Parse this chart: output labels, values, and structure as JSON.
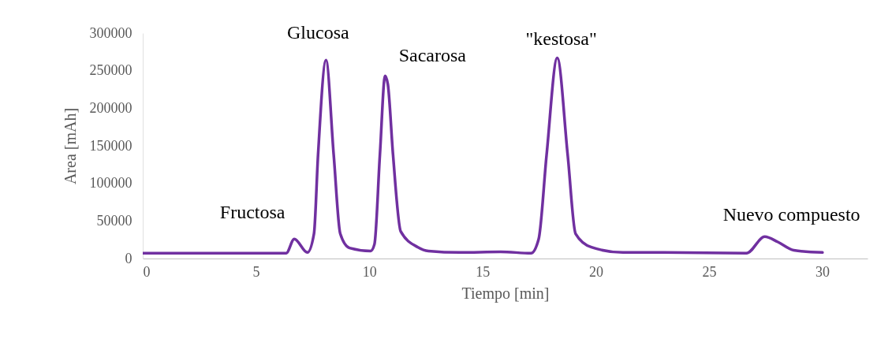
{
  "chart_data": {
    "type": "line",
    "xlabel": "Tiempo [min]",
    "ylabel": "Area [mAh]",
    "xlim": [
      0,
      32
    ],
    "xticks": [
      0,
      5,
      10,
      15,
      20,
      25,
      30
    ],
    "ylim": [
      0,
      300000
    ],
    "yticks": [
      0,
      50000,
      100000,
      150000,
      200000,
      250000,
      300000
    ],
    "grid": false,
    "marker": "none",
    "line_style": "solid",
    "series": [
      {
        "color": "#7030a0",
        "x": [
          0,
          3,
          6.33,
          6.69,
          7.27,
          7.56,
          7.74,
          8.09,
          8.43,
          8.72,
          9.13,
          10.06,
          10.23,
          10.47,
          10.7,
          10.82,
          11.05,
          11.39,
          12.15,
          12.61,
          14,
          15.8,
          17.14,
          17.48,
          17.83,
          18.3,
          18.76,
          19.11,
          19.81,
          21.2,
          23,
          26.65,
          27.46,
          28.04,
          28.74,
          30.01
        ],
        "values": [
          7000,
          7000,
          7000,
          26000,
          8000,
          33000,
          138000,
          264000,
          138000,
          33000,
          14000,
          10000,
          19000,
          138000,
          243000,
          232000,
          138000,
          36000,
          15000,
          10000,
          8000,
          9000,
          7000,
          26000,
          138000,
          267000,
          138000,
          33000,
          15000,
          8000,
          8000,
          7000,
          29000,
          22000,
          11000,
          8000
        ]
      }
    ],
    "annotations": [
      {
        "text": "Fructosa",
        "x": 6.69,
        "y": 26000
      },
      {
        "text": "Glucosa",
        "x": 8.09,
        "y": 264000
      },
      {
        "text": "Sacarosa",
        "x": 10.7,
        "y": 243000
      },
      {
        "text": "\"kestosa\"",
        "x": 18.3,
        "y": 267000
      },
      {
        "text": "Nuevo compuesto",
        "x": 27.46,
        "y": 29000
      }
    ]
  }
}
